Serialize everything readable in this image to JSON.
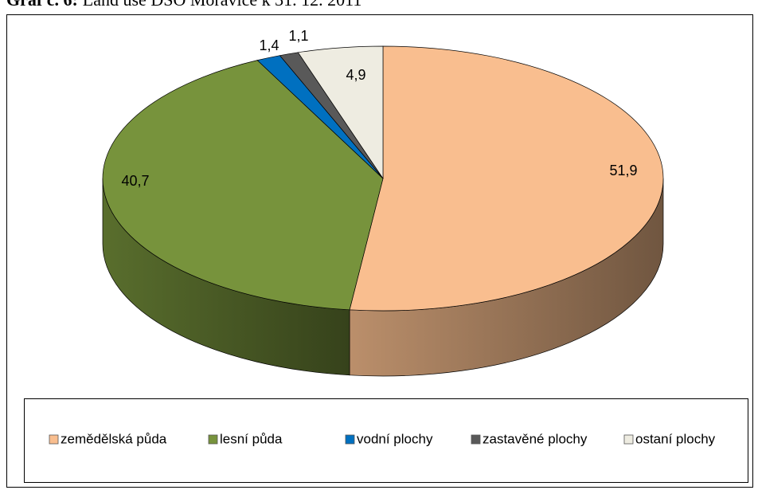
{
  "chart_data": {
    "type": "pie3d",
    "title_number": "Graf č. 6:",
    "title": "Land use DSO Moravice k 31. 12. 2011",
    "categories": [
      "zemědělská půda",
      "lesní půda",
      "vodní plochy",
      "zastavěné plochy",
      "ostaní plochy"
    ],
    "values": [
      51.9,
      40.7,
      1.4,
      1.1,
      4.9
    ],
    "value_labels": [
      "51,9",
      "40,7",
      "1,4",
      "1,1",
      "4,9"
    ],
    "colors": [
      "#f9be8f",
      "#77933c",
      "#0070c0",
      "#595959",
      "#eeece1"
    ],
    "legend": "bottom"
  }
}
